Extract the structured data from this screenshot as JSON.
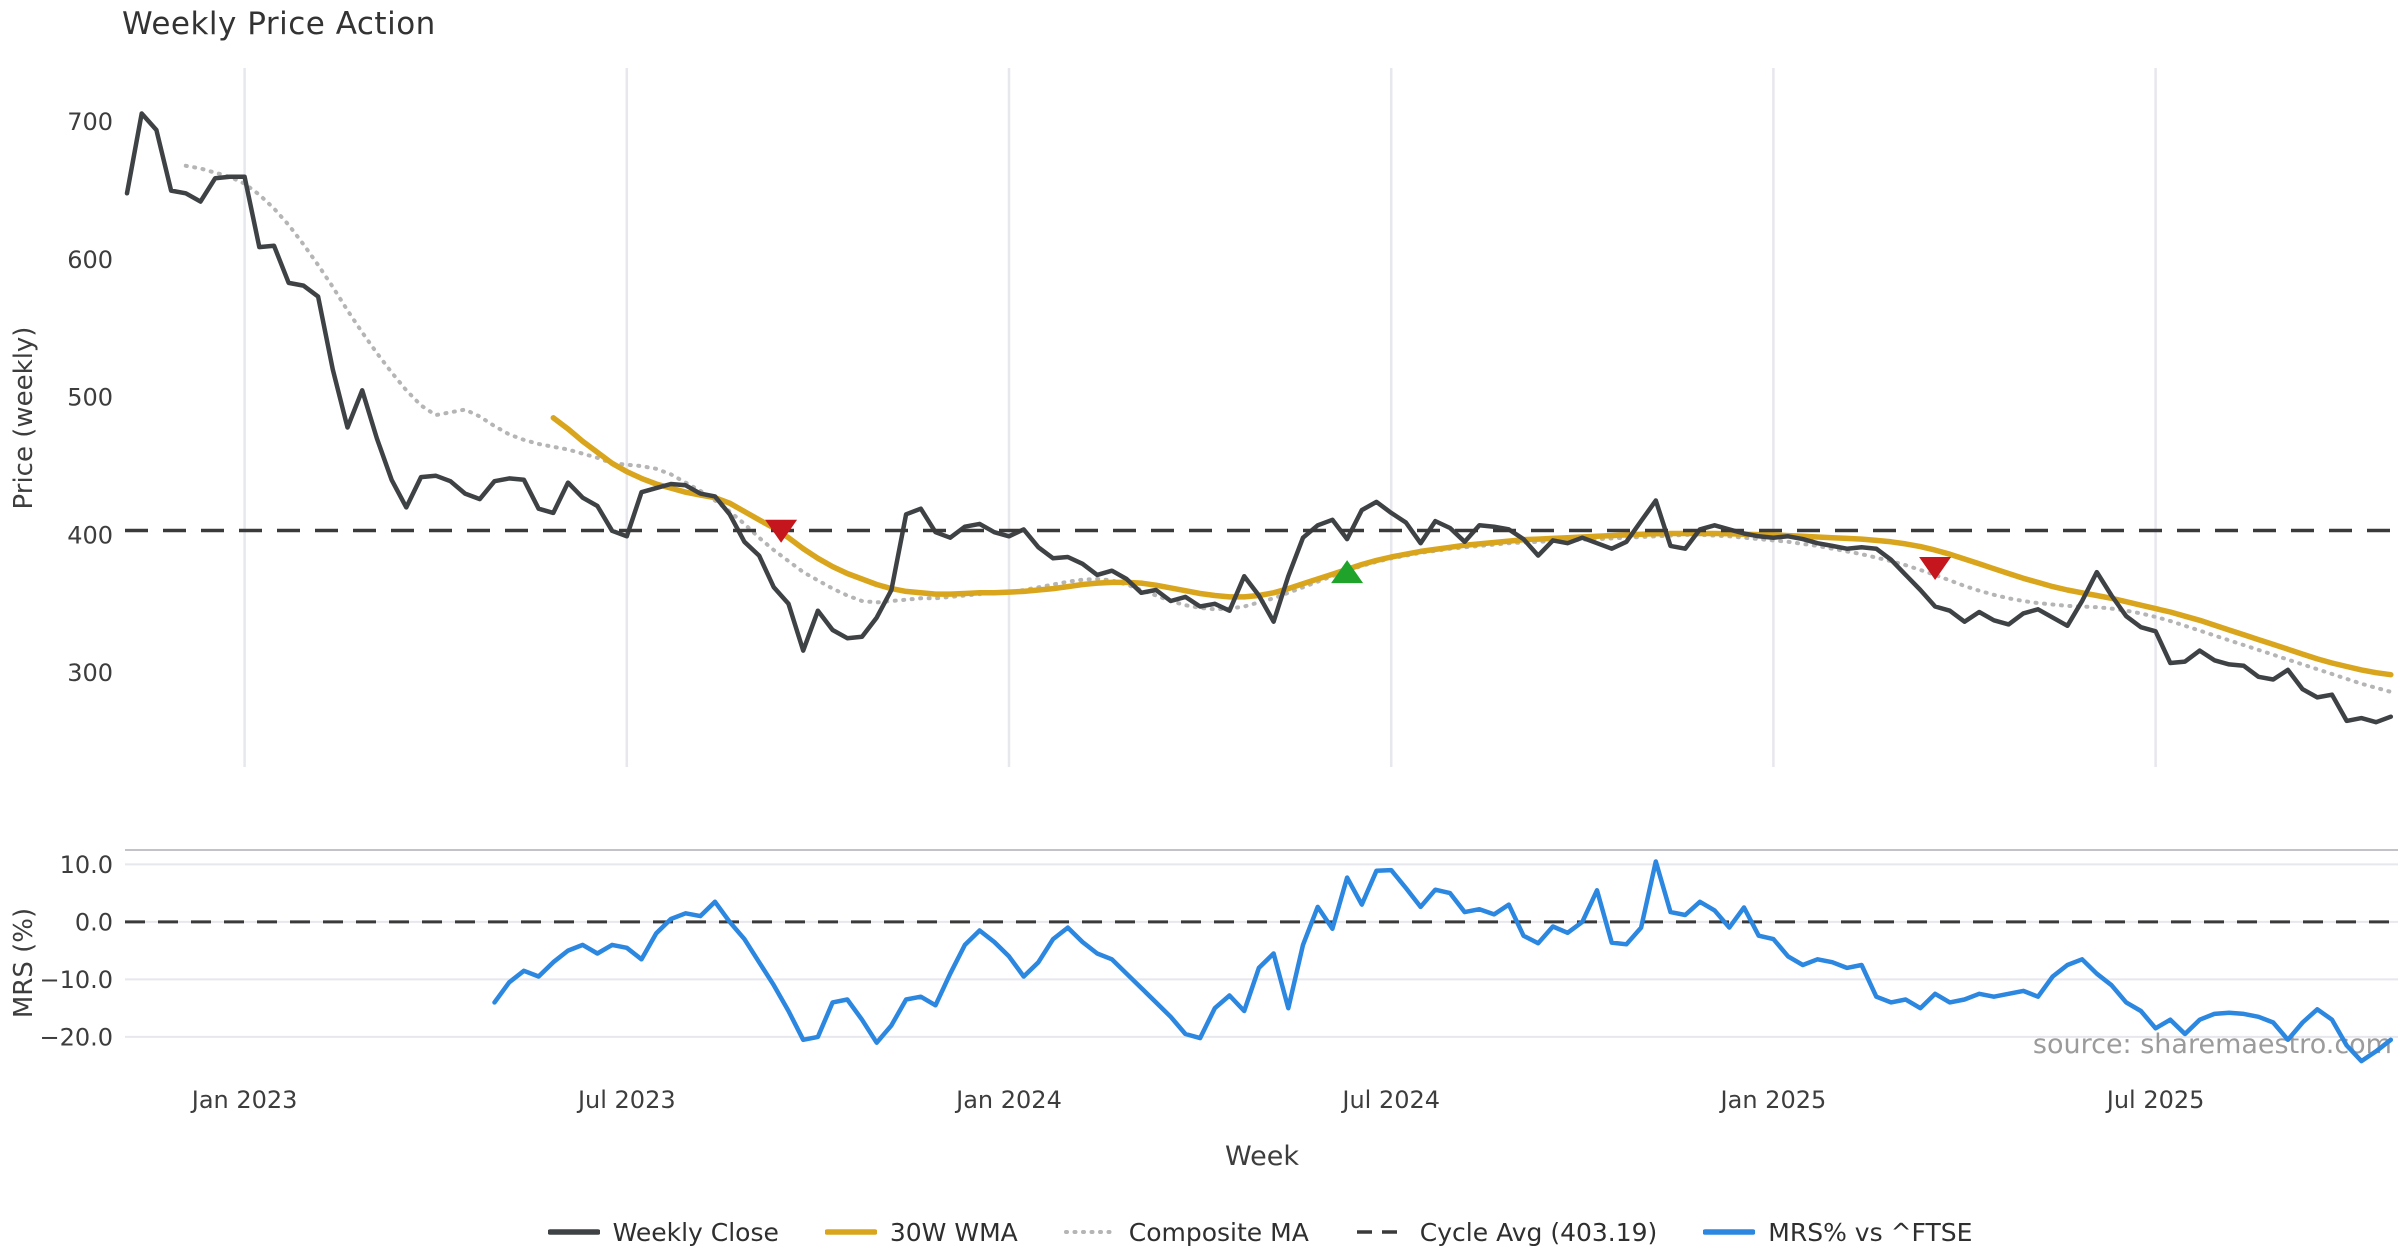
{
  "title": "Weekly Price Action",
  "source_text": "source: sharemaestro.com",
  "colors": {
    "close": "#3f4245",
    "wma": "#d9a51d",
    "composite": "#b5b5b5",
    "cycle_avg": "#3a3a3a",
    "mrs": "#2b87e0",
    "sell": "#c4161c",
    "buy": "#1fa32a",
    "grid": "#e7e7ee",
    "spine": "#c2c2c8",
    "tick_text": "#3d3d3d",
    "source": "#9b9b9b",
    "zero_line": "#3a3a3a"
  },
  "legend": {
    "items": [
      {
        "label": "Weekly Close",
        "style": "solid",
        "color_key": "close"
      },
      {
        "label": "30W WMA",
        "style": "solid",
        "color_key": "wma"
      },
      {
        "label": "Composite MA",
        "style": "dotted",
        "color_key": "composite"
      },
      {
        "label": "Cycle Avg (403.19)",
        "style": "dashed",
        "color_key": "cycle_avg"
      },
      {
        "label": "MRS% vs ^FTSE",
        "style": "solid",
        "color_key": "mrs"
      }
    ]
  },
  "chart_data": [
    {
      "type": "line",
      "panel": "price",
      "title": "Weekly Price Action",
      "ylabel": "Price (weekly)",
      "ylim": [
        231.5,
        739
      ],
      "grid": "vertical-only",
      "y_ticks": [
        {
          "value": 700,
          "label": "700"
        },
        {
          "value": 600,
          "label": "600"
        },
        {
          "value": 500,
          "label": "500"
        },
        {
          "value": 400,
          "label": "400"
        },
        {
          "value": 300,
          "label": "300"
        }
      ],
      "cycle_avg": 403.19,
      "series": [
        {
          "name": "Weekly Close",
          "start_week": 0,
          "values": [
            648,
            706,
            694,
            650,
            648,
            642,
            659,
            660,
            660,
            609,
            610,
            583,
            581,
            573,
            520,
            478,
            505,
            470,
            440,
            420,
            442,
            443,
            439,
            430,
            426,
            439,
            441,
            440,
            419,
            416,
            438,
            427,
            421,
            403,
            399,
            431,
            434,
            437,
            436,
            430,
            428,
            415,
            395,
            385,
            362,
            350,
            316,
            345,
            331,
            325,
            326,
            340,
            360,
            415,
            419,
            402,
            398,
            406,
            408,
            402,
            399,
            404,
            391,
            383,
            384,
            379,
            371,
            374,
            368,
            358,
            360,
            352,
            355,
            348,
            350,
            345,
            370,
            356,
            337,
            370,
            398,
            407,
            411,
            397,
            418,
            424,
            416,
            409,
            394,
            410,
            405,
            395,
            407,
            406,
            404,
            397,
            385,
            396,
            394,
            398,
            394,
            390,
            395,
            410,
            425,
            392,
            390,
            404,
            407,
            404,
            401,
            399,
            398,
            399,
            397,
            394,
            392,
            390,
            391,
            390,
            382,
            371,
            360,
            348,
            345,
            337,
            344,
            338,
            335,
            343,
            346,
            340,
            334,
            352,
            373,
            356,
            341,
            333,
            330,
            307,
            308,
            316,
            309,
            306,
            305,
            297,
            295,
            302,
            288,
            282,
            284,
            265,
            267,
            264,
            268
          ]
        },
        {
          "name": "30W WMA",
          "start_week": 29,
          "values": [
            485,
            477,
            468,
            460,
            452,
            446,
            441,
            437,
            434,
            431,
            429,
            427,
            423,
            417,
            411,
            405,
            398,
            390,
            383,
            377,
            372,
            368,
            364,
            361,
            359,
            358,
            357,
            357,
            357.5,
            358,
            358,
            358.5,
            359,
            360,
            361,
            362.5,
            364,
            365,
            365.5,
            365.5,
            365,
            363.5,
            361.5,
            359.5,
            357.5,
            356,
            355,
            355,
            356,
            358,
            361,
            364.5,
            368,
            371.5,
            375,
            378.5,
            381.5,
            384,
            386,
            388,
            389.5,
            391,
            392.5,
            393.5,
            394.5,
            395.5,
            396.5,
            397,
            397.5,
            398,
            398.5,
            399,
            399.5,
            400,
            400.5,
            400.8,
            401,
            401,
            401,
            401,
            400.8,
            400.5,
            400.2,
            400,
            399.5,
            399,
            398.5,
            398,
            397.5,
            397,
            396,
            395,
            393.5,
            391.5,
            389,
            386,
            382.5,
            379,
            375.5,
            372,
            368.5,
            365.5,
            362.5,
            360,
            358,
            356,
            354,
            351.5,
            349,
            346.5,
            344,
            341,
            338,
            334.5,
            331,
            327.5,
            324,
            320.5,
            317,
            313.5,
            310,
            307,
            304.5,
            302,
            300,
            298.5
          ]
        },
        {
          "name": "Composite MA",
          "start_week": 4,
          "values": [
            668,
            666,
            663,
            660,
            655,
            647,
            637,
            625,
            611,
            596,
            580,
            563,
            547,
            532,
            518,
            505,
            494,
            487,
            489,
            491,
            486,
            479,
            473,
            469,
            466,
            464,
            462,
            459,
            456,
            452,
            451,
            450,
            448,
            444,
            438,
            432,
            425,
            417,
            408,
            398,
            389,
            381,
            373,
            367,
            361,
            356,
            352,
            351,
            352,
            353,
            354,
            354,
            355,
            356,
            357,
            358,
            358,
            360,
            362,
            364,
            366,
            367.5,
            368,
            367,
            364,
            360,
            356,
            352,
            349,
            347,
            346,
            346.5,
            348,
            351,
            354,
            358,
            362,
            366,
            370,
            374,
            377.5,
            380.5,
            383,
            385,
            387,
            388.5,
            390,
            391,
            392,
            393,
            394,
            394.5,
            395,
            395.5,
            396,
            396.5,
            397,
            397.5,
            398,
            398.5,
            399,
            399.5,
            400,
            400,
            399.5,
            399,
            398,
            397,
            396,
            395,
            393.5,
            392,
            390,
            388,
            386,
            383.5,
            381,
            378,
            374.5,
            371,
            367,
            363,
            359.5,
            356.5,
            354,
            352,
            350.5,
            349.5,
            348.5,
            348,
            347.5,
            346.5,
            345,
            343,
            340.5,
            337.5,
            334,
            330.5,
            327,
            323.5,
            320,
            316.5,
            313,
            309.5,
            306,
            302.5,
            299,
            295.5,
            292,
            289,
            286
          ]
        }
      ],
      "markers": [
        {
          "kind": "sell",
          "shape": "triangle-down",
          "week": 44.5,
          "value": 403
        },
        {
          "kind": "buy",
          "shape": "triangle-up",
          "week": 83,
          "value": 373
        },
        {
          "kind": "sell",
          "shape": "triangle-down",
          "week": 123,
          "value": 376
        }
      ]
    },
    {
      "type": "line",
      "panel": "mrs",
      "ylabel": "MRS (%)",
      "xlabel": "Week",
      "ylim": [
        -26.1,
        12.5
      ],
      "grid": "horizontal-only",
      "y_ticks": [
        {
          "value": 10,
          "label": "10.0"
        },
        {
          "value": 0,
          "label": "0.0"
        },
        {
          "value": -10,
          "label": "−10.0"
        },
        {
          "value": -20,
          "label": "−20.0"
        }
      ],
      "x_ticks": [
        {
          "week": 8,
          "label": "Jan 2023"
        },
        {
          "week": 34,
          "label": "Jul 2023"
        },
        {
          "week": 60,
          "label": "Jan 2024"
        },
        {
          "week": 86,
          "label": "Jul 2024"
        },
        {
          "week": 112,
          "label": "Jan 2025"
        },
        {
          "week": 138,
          "label": "Jul 2025"
        }
      ],
      "zero_line": 0,
      "series": [
        {
          "name": "MRS% vs ^FTSE",
          "start_week": 25,
          "values": [
            -14,
            -10.5,
            -8.5,
            -9.5,
            -7,
            -5,
            -4,
            -5.5,
            -4,
            -4.5,
            -6.5,
            -2,
            0.5,
            1.5,
            1,
            3.5,
            0,
            -3,
            -7,
            -11,
            -15.5,
            -20.5,
            -20,
            -14,
            -13.5,
            -17,
            -21,
            -18,
            -13.5,
            -13,
            -14.5,
            -9,
            -4,
            -1.5,
            -3.5,
            -6,
            -9.5,
            -7,
            -3,
            -1,
            -3.5,
            -5.5,
            -6.5,
            -9,
            -11.5,
            -14,
            -16.5,
            -19.5,
            -20.2,
            -15,
            -12.8,
            -15.5,
            -8,
            -5.5,
            -15,
            -4,
            2.6,
            -1.2,
            7.7,
            3,
            8.9,
            9,
            5.9,
            2.6,
            5.6,
            5,
            1.7,
            2.2,
            1.3,
            3,
            -2.4,
            -3.7,
            -0.8,
            -1.9,
            0,
            5.5,
            -3.6,
            -3.9,
            -1,
            10.5,
            1.7,
            1.2,
            3.5,
            2,
            -1,
            2.5,
            -2.4,
            -3,
            -6,
            -7.5,
            -6.5,
            -7,
            -8,
            -7.5,
            -13,
            -14,
            -13.5,
            -15,
            -12.5,
            -14,
            -13.5,
            -12.5,
            -13,
            -12.5,
            -12,
            -13,
            -9.5,
            -7.5,
            -6.5,
            -9,
            -11,
            -14,
            -15.5,
            -18.5,
            -17,
            -19.5,
            -17,
            -16,
            -15.8,
            -16,
            -16.5,
            -17.5,
            -20.5,
            -17.5,
            -15.2,
            -17,
            -21.5,
            -24.2,
            -22.5,
            -20.5
          ]
        }
      ]
    }
  ]
}
